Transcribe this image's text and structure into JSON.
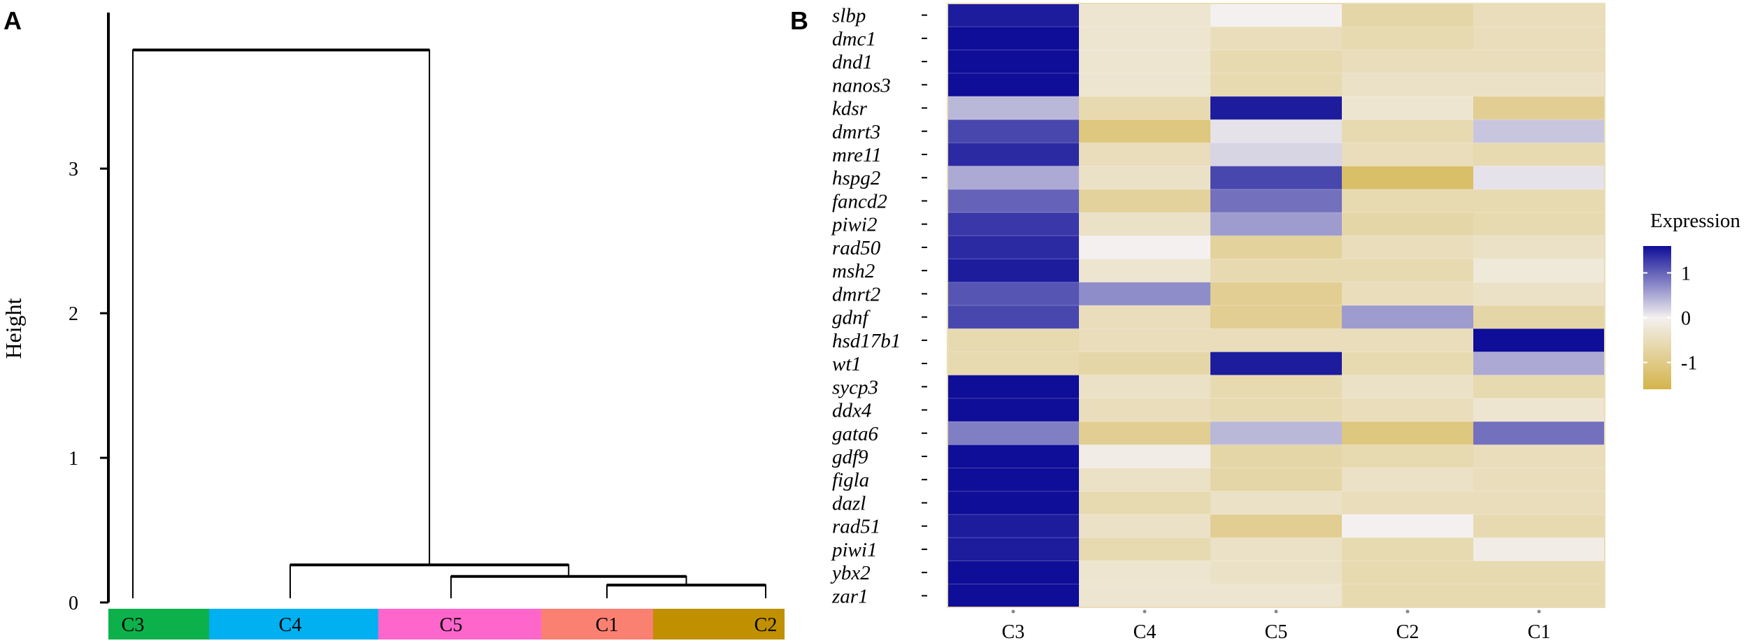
{
  "panels": {
    "a_label": "A",
    "b_label": "B"
  },
  "chart_data": [
    {
      "type": "dendrogram",
      "ylabel": "Height",
      "ylim": [
        0,
        3.9
      ],
      "yticks": [
        0,
        1,
        2,
        3
      ],
      "ytick_labels": [
        "0",
        "1",
        "2",
        "3"
      ],
      "leaves": [
        "C3",
        "C4",
        "C5",
        "C1",
        "C2"
      ],
      "leaf_colors": [
        "#0db14b",
        "#00b0f0",
        "#ff66cc",
        "#fa8072",
        "#c09000"
      ],
      "merges": [
        {
          "left": "C1",
          "right": "C2",
          "height": 0.12
        },
        {
          "left": "C5",
          "right": "C1+C2",
          "height": 0.18
        },
        {
          "left": "C4",
          "right": "C5+C1+C2",
          "height": 0.26
        },
        {
          "left": "C3",
          "right": "C4+C5+C1+C2",
          "height": 3.82
        }
      ]
    },
    {
      "type": "heatmap",
      "legend_title": "Expression",
      "legend_ticks": [
        1,
        0,
        -1
      ],
      "legend_tick_labels": [
        "1",
        "0",
        "-1"
      ],
      "color_low": "#d4b44a",
      "color_mid": "#f3f0ef",
      "color_high": "#0f0e98",
      "value_range": [
        -1.6,
        1.6
      ],
      "columns": [
        "C3",
        "C4",
        "C5",
        "C2",
        "C1"
      ],
      "rows": [
        "slbp",
        "dmc1",
        "dnd1",
        "nanos3",
        "kdsr",
        "dmrt3",
        "mre11",
        "hspg2",
        "fancd2",
        "piwi2",
        "rad50",
        "msh2",
        "dmrt2",
        "gdnf",
        "hsd17b1",
        "wt1",
        "sycp3",
        "ddx4",
        "gata6",
        "gdf9",
        "figla",
        "dazl",
        "rad51",
        "piwi1",
        "ybx2",
        "zar1"
      ],
      "values": [
        [
          1.5,
          -0.3,
          0.0,
          -0.7,
          -0.5
        ],
        [
          1.6,
          -0.3,
          -0.5,
          -0.6,
          -0.5
        ],
        [
          1.6,
          -0.3,
          -0.6,
          -0.5,
          -0.5
        ],
        [
          1.6,
          -0.3,
          -0.6,
          -0.4,
          -0.4
        ],
        [
          0.4,
          -0.6,
          1.5,
          -0.3,
          -0.9
        ],
        [
          1.2,
          -1.1,
          0.1,
          -0.6,
          0.3
        ],
        [
          1.4,
          -0.5,
          0.2,
          -0.5,
          -0.6
        ],
        [
          0.5,
          -0.4,
          1.2,
          -1.3,
          0.1
        ],
        [
          1.0,
          -0.8,
          0.9,
          -0.6,
          -0.6
        ],
        [
          1.3,
          -0.4,
          0.6,
          -0.7,
          -0.6
        ],
        [
          1.4,
          0.0,
          -0.8,
          -0.5,
          -0.4
        ],
        [
          1.5,
          -0.3,
          -0.6,
          -0.6,
          -0.2
        ],
        [
          1.1,
          0.7,
          -0.9,
          -0.5,
          -0.4
        ],
        [
          1.2,
          -0.5,
          -0.9,
          0.6,
          -0.7
        ],
        [
          -0.6,
          -0.5,
          -0.5,
          -0.5,
          1.6
        ],
        [
          -0.6,
          -0.7,
          1.5,
          -0.6,
          0.5
        ],
        [
          1.6,
          -0.4,
          -0.6,
          -0.4,
          -0.6
        ],
        [
          1.6,
          -0.5,
          -0.6,
          -0.5,
          -0.3
        ],
        [
          0.8,
          -0.9,
          0.4,
          -1.1,
          0.9
        ],
        [
          1.6,
          -0.1,
          -0.7,
          -0.6,
          -0.5
        ],
        [
          1.6,
          -0.4,
          -0.7,
          -0.4,
          -0.5
        ],
        [
          1.6,
          -0.6,
          -0.4,
          -0.5,
          -0.5
        ],
        [
          1.5,
          -0.4,
          -0.9,
          0.0,
          -0.6
        ],
        [
          1.5,
          -0.6,
          -0.4,
          -0.6,
          -0.1
        ],
        [
          1.6,
          -0.3,
          -0.4,
          -0.6,
          -0.6
        ],
        [
          1.6,
          -0.3,
          -0.3,
          -0.6,
          -0.6
        ]
      ]
    }
  ]
}
